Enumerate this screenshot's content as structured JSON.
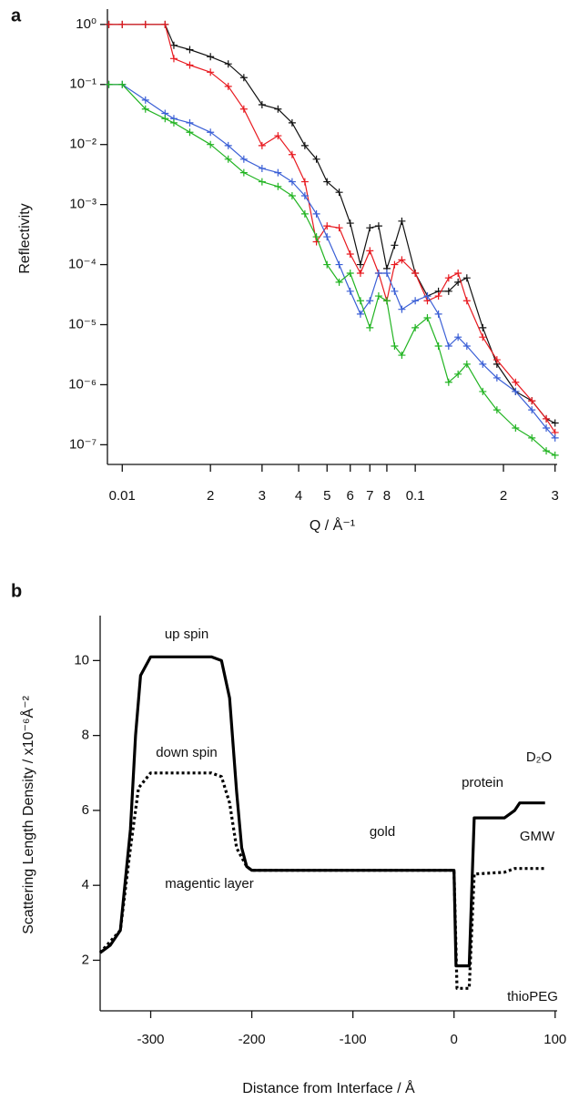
{
  "chart_data": [
    {
      "type": "line",
      "panel": "a",
      "marker": "+",
      "xscale": "log",
      "yscale": "log",
      "xlabel": "Q / Å⁻¹",
      "ylabel": "Reflectivity",
      "xlim": [
        0.0089,
        0.305
      ],
      "ylim": [
        4.7e-08,
        1.8
      ],
      "xticks": [
        0.01,
        {
          "value": 0.02,
          "label": "2"
        },
        {
          "value": 0.03,
          "label": "3"
        },
        {
          "value": 0.04,
          "label": "4"
        },
        {
          "value": 0.05,
          "label": "5"
        },
        {
          "value": 0.06,
          "label": "6"
        },
        {
          "value": 0.07,
          "label": "7"
        },
        {
          "value": 0.08,
          "label": "8"
        },
        0.1,
        {
          "value": 0.2,
          "label": "2"
        },
        {
          "value": 0.3,
          "label": "3"
        }
      ],
      "yticks": [
        {
          "value": 1,
          "label": "10⁰"
        },
        {
          "value": 0.1,
          "label": "10⁻¹"
        },
        {
          "value": 0.01,
          "label": "10⁻²"
        },
        {
          "value": 0.001,
          "label": "10⁻³"
        },
        {
          "value": 0.0001,
          "label": "10⁻⁴"
        },
        {
          "value": 1e-05,
          "label": "10⁻⁵"
        },
        {
          "value": 1e-06,
          "label": "10⁻⁶"
        },
        {
          "value": 1e-07,
          "label": "10⁻⁷"
        }
      ],
      "x": [
        0.009,
        0.01,
        0.012,
        0.014,
        0.015,
        0.017,
        0.02,
        0.023,
        0.026,
        0.03,
        0.034,
        0.038,
        0.042,
        0.046,
        0.05,
        0.055,
        0.06,
        0.065,
        0.07,
        0.075,
        0.08,
        0.085,
        0.09,
        0.1,
        0.11,
        0.12,
        0.13,
        0.14,
        0.15,
        0.17,
        0.19,
        0.22,
        0.25,
        0.28,
        0.3
      ],
      "series": [
        {
          "color": "#111111",
          "values": [
            1,
            1,
            1,
            1,
            0.45,
            0.38,
            0.29,
            0.22,
            0.13,
            0.046,
            0.039,
            0.023,
            0.0096,
            0.0057,
            0.0024,
            0.0016,
            0.00049,
            0.0001,
            0.00041,
            0.00044,
            8.6e-05,
            0.00021,
            0.00053,
            7.2e-05,
            3e-05,
            3.6e-05,
            3.6e-05,
            5.1e-05,
            6e-05,
            8.9e-06,
            2.2e-06,
            7.7e-07,
            5.4e-07,
            2.7e-07,
            2.3e-07
          ]
        },
        {
          "color": "#e8191f",
          "values": [
            1,
            1,
            1,
            1,
            0.27,
            0.21,
            0.16,
            0.093,
            0.039,
            0.0096,
            0.014,
            0.0068,
            0.0024,
            0.00024,
            0.00044,
            0.00041,
            0.00015,
            7.2e-05,
            0.00017,
            7.2e-05,
            2.5e-05,
            0.0001,
            0.00012,
            7.2e-05,
            2.5e-05,
            3e-05,
            6e-05,
            7.2e-05,
            2.5e-05,
            6.2e-06,
            2.6e-06,
            1.1e-06,
            5.4e-07,
            2.7e-07,
            1.6e-07
          ]
        },
        {
          "color": "#3a5fd6",
          "values": [
            0.1,
            0.1,
            0.055,
            0.033,
            0.027,
            0.023,
            0.016,
            0.0096,
            0.0057,
            0.004,
            0.0034,
            0.0024,
            0.0014,
            0.0007,
            0.00029,
            0.0001,
            3.6e-05,
            1.5e-05,
            2.5e-05,
            7.2e-05,
            7.2e-05,
            3.6e-05,
            1.8e-05,
            2.5e-05,
            3e-05,
            1.5e-05,
            4.4e-06,
            6.2e-06,
            4.4e-06,
            2.2e-06,
            1.3e-06,
            7.7e-07,
            3.8e-07,
            1.9e-07,
            1.3e-07
          ]
        },
        {
          "color": "#22b422",
          "values": [
            0.1,
            0.1,
            0.039,
            0.027,
            0.023,
            0.016,
            0.01,
            0.0057,
            0.0034,
            0.0024,
            0.002,
            0.0014,
            0.0007,
            0.00029,
            0.0001,
            5.1e-05,
            7.2e-05,
            2.5e-05,
            8.9e-06,
            3e-05,
            2.5e-05,
            4.4e-06,
            3.1e-06,
            8.9e-06,
            1.3e-05,
            4.4e-06,
            1.1e-06,
            1.5e-06,
            2.2e-06,
            7.7e-07,
            3.8e-07,
            1.9e-07,
            1.3e-07,
            7.9e-08,
            6.7e-08
          ]
        }
      ]
    },
    {
      "type": "line",
      "panel": "b",
      "xlabel": "Distance from Interface / Å",
      "ylabel": "Scattering Length Density / x10⁻⁶Å⁻²",
      "xlim": [
        -350,
        102
      ],
      "ylim": [
        0.65,
        11.2
      ],
      "xticks": [
        -300,
        -200,
        -100,
        0,
        100
      ],
      "yticks": [
        2,
        4,
        6,
        8,
        10
      ],
      "annotations": [
        "gold",
        "magentic layer",
        "protein",
        "D₂O",
        "GMW",
        "thioPEG"
      ],
      "series": [
        {
          "name": "up spin",
          "color": "#000000",
          "line_style": "solid",
          "x": [
            -350,
            -340,
            -330,
            -320,
            -315,
            -310,
            -300,
            -240,
            -230,
            -222,
            -215,
            -210,
            -205,
            -200,
            0,
            2,
            15,
            20,
            50,
            60,
            65,
            90
          ],
          "values": [
            2.2,
            2.4,
            2.8,
            5.5,
            8,
            9.6,
            10.1,
            10.1,
            10,
            9,
            6.5,
            5,
            4.5,
            4.4,
            4.4,
            1.85,
            1.85,
            5.8,
            5.8,
            6,
            6.2,
            6.2
          ]
        },
        {
          "name": "down spin",
          "color": "#000000",
          "line_style": "dotted",
          "x": [
            -350,
            -330,
            -320,
            -312,
            -300,
            -240,
            -230,
            -222,
            -215,
            -205,
            -200,
            0,
            3,
            15,
            20,
            50,
            60,
            90
          ],
          "values": [
            2.2,
            2.8,
            5,
            6.6,
            7,
            7,
            6.9,
            6.2,
            5,
            4.5,
            4.4,
            4.4,
            1.25,
            1.25,
            4.3,
            4.35,
            4.45,
            4.45
          ]
        }
      ]
    }
  ]
}
